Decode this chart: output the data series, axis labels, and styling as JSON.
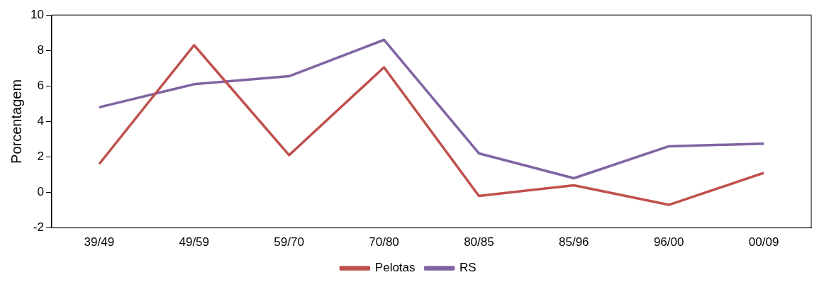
{
  "chart_data": {
    "type": "line",
    "ylabel": "Porcentagem",
    "categories": [
      "39/49",
      "49/59",
      "59/70",
      "70/80",
      "80/85",
      "85/96",
      "96/00",
      "00/09"
    ],
    "series": [
      {
        "name": "Pelotas",
        "color": "#c0504d",
        "values": [
          1.6,
          8.3,
          2.1,
          7.05,
          -0.2,
          0.4,
          -0.7,
          1.1
        ]
      },
      {
        "name": "RS",
        "color": "#8064a2",
        "values": [
          4.8,
          6.1,
          6.55,
          8.6,
          2.2,
          0.8,
          2.6,
          2.75
        ]
      }
    ],
    "ylim": [
      -2,
      10
    ],
    "yticks": [
      -2,
      0,
      2,
      4,
      6,
      8,
      10
    ],
    "grid": false,
    "legend": "bottom",
    "marker": "none",
    "line_style": "solid"
  }
}
